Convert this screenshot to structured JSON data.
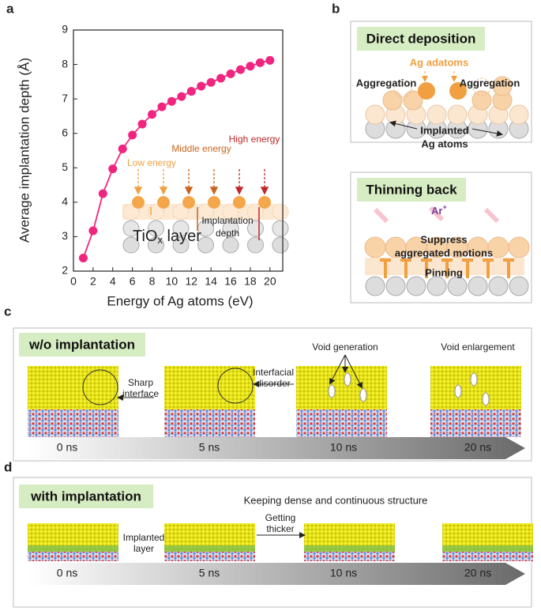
{
  "chart_data": {
    "type": "line",
    "panel_label": "a",
    "x_label": "Energy of Ag atoms (eV)",
    "y_label": "Average implantation depth (Å)",
    "x": [
      1,
      2,
      3,
      4,
      5,
      6,
      7,
      8,
      9,
      10,
      11,
      12,
      13,
      14,
      15,
      16,
      17,
      18,
      19,
      20
    ],
    "values": [
      2.38,
      3.17,
      4.25,
      4.97,
      5.55,
      5.95,
      6.27,
      6.55,
      6.77,
      6.93,
      7.07,
      7.22,
      7.37,
      7.48,
      7.6,
      7.73,
      7.85,
      7.95,
      8.05,
      8.12
    ],
    "color": "#f0257f",
    "xlim": [
      0,
      21.3
    ],
    "xticks": [
      0,
      2,
      4,
      6,
      8,
      10,
      12,
      14,
      16,
      18,
      20
    ],
    "ylim": [
      2,
      9
    ],
    "yticks": [
      2,
      3,
      4,
      5,
      6,
      7,
      8,
      9
    ],
    "inset": {
      "low": "Low energy",
      "middle": "Middle energy",
      "high": "High energy",
      "depth": [
        "Implantation",
        "depth"
      ],
      "layer": {
        "base": "TiO",
        "sub": "x",
        "rest": " layer"
      }
    }
  },
  "panel_b": {
    "label": "b",
    "top": {
      "title": "Direct deposition",
      "adatoms": "Ag adatoms",
      "aggregation_left": "Aggregation",
      "aggregation_right": "Aggregation",
      "implanted": [
        "Implanted",
        "Ag atoms"
      ]
    },
    "bottom": {
      "title": "Thinning back",
      "ion": {
        "base": "Ar",
        "sup": "+"
      },
      "suppress": [
        "Suppress",
        "aggregated motions"
      ],
      "pinning": "Pinning"
    }
  },
  "panel_c": {
    "label": "c",
    "title": "w/o implantation",
    "sharp": [
      "Sharp",
      "interface"
    ],
    "disorder": [
      "Interfacial",
      "disorder"
    ],
    "void_generation": "Void generation",
    "void_enlargement": "Void enlargement",
    "times": [
      "0 ns",
      "5 ns",
      "10 ns",
      "20 ns"
    ]
  },
  "panel_d": {
    "label": "d",
    "title": "with implantation",
    "caption": "Keeping dense and continuous structure",
    "implanted": [
      "Implanted",
      "layer"
    ],
    "thicker": [
      "Getting",
      "thicker"
    ],
    "times": [
      "0 ns",
      "5 ns",
      "10 ns",
      "20 ns"
    ]
  }
}
